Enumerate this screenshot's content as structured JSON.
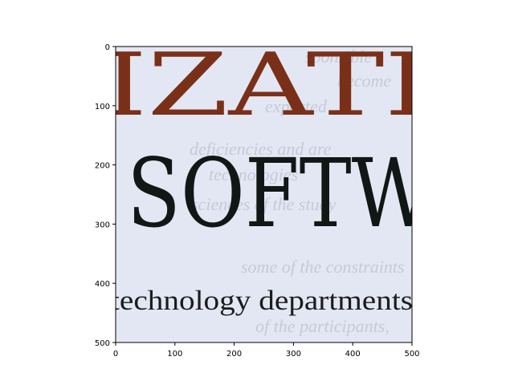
{
  "image": {
    "heading_top_fragment": "IZATI",
    "heading_main_fragment": "SOFTW",
    "body_line": "technology  departments",
    "background_text_fragments": [
      "sponsible",
      "become",
      "expected",
      "deficiencies and are",
      "technologies",
      "sciences of the study",
      "some of the constraints",
      "of the participants,"
    ],
    "colors": {
      "paper": "#e3e7f3",
      "top_heading": "#7a3018",
      "main_heading": "#101815",
      "body_text": "#1c1c1c",
      "ghost_text": "#c5cad8"
    }
  },
  "axes": {
    "x_ticks": [
      "0",
      "100",
      "200",
      "300",
      "400",
      "500"
    ],
    "y_ticks": [
      "0",
      "100",
      "200",
      "300",
      "400",
      "500"
    ],
    "x_range": [
      0,
      500
    ],
    "y_range": [
      0,
      500
    ],
    "y_inverted": true
  }
}
